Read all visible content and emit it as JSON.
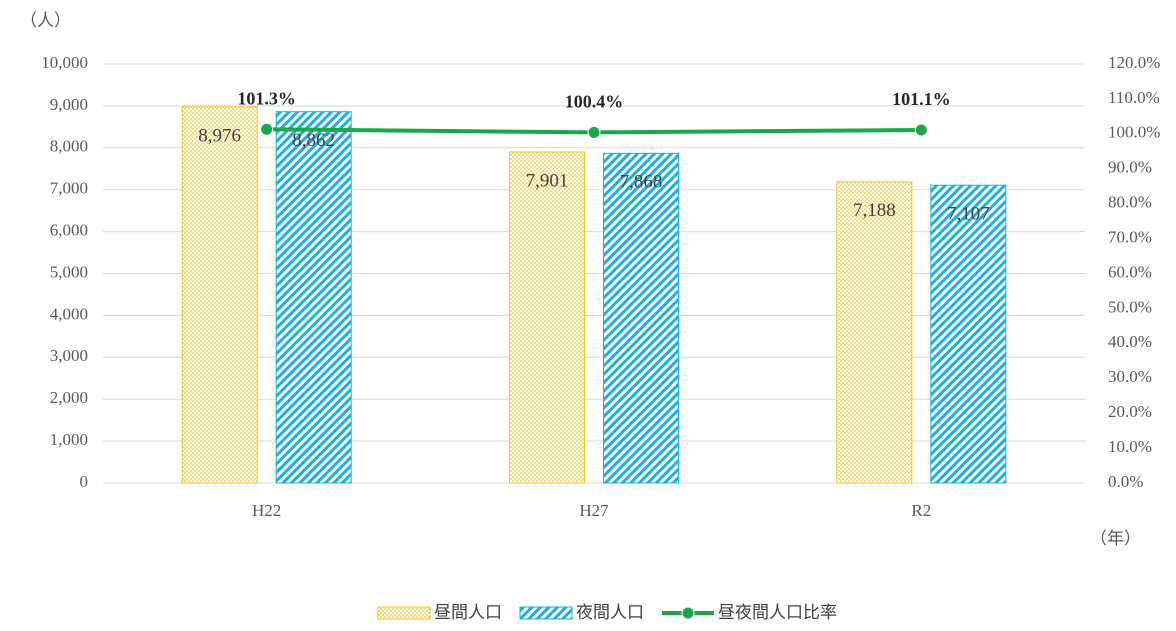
{
  "chart_data": {
    "type": "bar",
    "categories": [
      "H22",
      "H27",
      "R2"
    ],
    "y_axis_label": "（人）",
    "x_axis_label": "（年）",
    "series": [
      {
        "name": "昼間人口",
        "type": "bar",
        "color": "#f5c518",
        "values": [
          8976,
          7901,
          7188
        ],
        "value_labels": [
          "8,976",
          "7,901",
          "7,188"
        ]
      },
      {
        "name": "夜間人口",
        "type": "bar",
        "color": "#1ab0e0",
        "values": [
          8862,
          7868,
          7107
        ],
        "value_labels": [
          "8,862",
          "7,868",
          "7,107"
        ]
      },
      {
        "name": "昼夜間人口比率",
        "type": "line",
        "axis": "y2",
        "color": "#1aa64a",
        "values": [
          101.3,
          100.4,
          101.1
        ],
        "value_labels": [
          "101.3%",
          "100.4%",
          "101.1%"
        ]
      }
    ],
    "ylim": [
      0,
      10000
    ],
    "yticks": [
      0,
      {
        "value": 1000,
        "label": "1,000"
      },
      {
        "value": 2000,
        "label": "2,000"
      },
      {
        "value": 3000,
        "label": "3,000"
      },
      {
        "value": 4000,
        "label": "4,000"
      },
      {
        "value": 5000,
        "label": "5,000"
      },
      {
        "value": 6000,
        "label": "6,000"
      },
      {
        "value": 7000,
        "label": "7,000"
      },
      {
        "value": 8000,
        "label": "8,000"
      },
      {
        "value": 9000,
        "label": "9,000"
      },
      {
        "value": 10000,
        "label": "10,000"
      }
    ],
    "y2lim": [
      0,
      120
    ],
    "y2ticks": [
      {
        "value": 0,
        "label": "0.0%"
      },
      {
        "value": 10,
        "label": "10.0%"
      },
      {
        "value": 20,
        "label": "20.0%"
      },
      {
        "value": 30,
        "label": "30.0%"
      },
      {
        "value": 40,
        "label": "40.0%"
      },
      {
        "value": 50,
        "label": "50.0%"
      },
      {
        "value": 60,
        "label": "60.0%"
      },
      {
        "value": 70,
        "label": "70.0%"
      },
      {
        "value": 80,
        "label": "80.0%"
      },
      {
        "value": 90,
        "label": "90.0%"
      },
      {
        "value": 100,
        "label": "100.0%"
      },
      {
        "value": 110,
        "label": "110.0%"
      },
      {
        "value": 120,
        "label": "120.0%"
      }
    ],
    "grid": true
  }
}
